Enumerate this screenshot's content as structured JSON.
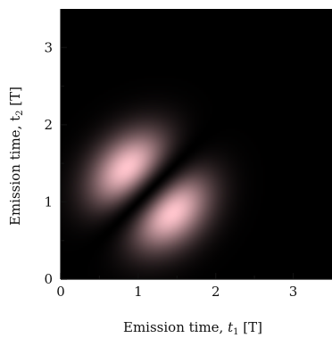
{
  "chart_data": {
    "type": "heatmap",
    "title": "",
    "xlabel": "Emission time, ",
    "xlabel_var": "t",
    "xlabel_sub": "1",
    "xlabel_unit": " [T]",
    "ylabel": "Emission time, t",
    "ylabel_sub": "2",
    "ylabel_unit": " [T]",
    "xlim": [
      0,
      3.5
    ],
    "ylim": [
      0,
      3.5
    ],
    "xticks": [
      0,
      1,
      2,
      3
    ],
    "yticks": [
      0,
      1,
      2,
      3
    ],
    "xtick_labels": [
      "0",
      "1",
      "2",
      "3"
    ],
    "ytick_labels": [
      "0",
      "1",
      "2",
      "3"
    ],
    "grid": false,
    "colormap": {
      "low": "#000000",
      "high": "#ffc4cc"
    },
    "description_of_peaks": [
      {
        "x": 0.8,
        "y": 1.65,
        "value": 1.0
      },
      {
        "x": 1.65,
        "y": 0.85,
        "value": 1.0
      }
    ],
    "zero_line": "x = y"
  }
}
